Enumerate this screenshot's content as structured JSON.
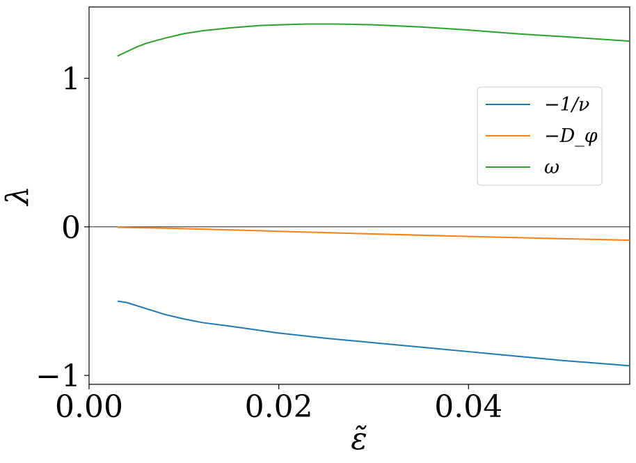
{
  "chart_data": {
    "type": "line",
    "xlabel": "ε̃",
    "ylabel": "λ",
    "xlim": [
      0.0,
      0.057
    ],
    "ylim": [
      -1.06,
      1.48
    ],
    "xticks": [
      0.0,
      0.02,
      0.04
    ],
    "xtick_labels": [
      "0.00",
      "0.02",
      "0.04"
    ],
    "yticks": [
      -1,
      0,
      1
    ],
    "ytick_labels": [
      "−1",
      "0",
      "1"
    ],
    "grid": false,
    "zero_line": 0,
    "legend_position": "center-right",
    "series": [
      {
        "name": "−1/ν",
        "color": "#1f77b4",
        "x": [
          0.003,
          0.004,
          0.005,
          0.006,
          0.008,
          0.01,
          0.012,
          0.015,
          0.02,
          0.025,
          0.03,
          0.035,
          0.04,
          0.045,
          0.05,
          0.057
        ],
        "y": [
          -0.5,
          -0.51,
          -0.53,
          -0.55,
          -0.59,
          -0.62,
          -0.645,
          -0.67,
          -0.715,
          -0.75,
          -0.78,
          -0.81,
          -0.84,
          -0.87,
          -0.9,
          -0.935
        ]
      },
      {
        "name": "−D_φ",
        "color": "#ff7f0e",
        "x": [
          0.003,
          0.01,
          0.02,
          0.03,
          0.04,
          0.05,
          0.057
        ],
        "y": [
          -0.003,
          -0.012,
          -0.03,
          -0.048,
          -0.065,
          -0.08,
          -0.09
        ]
      },
      {
        "name": "ω",
        "color": "#2ca02c",
        "x": [
          0.003,
          0.004,
          0.005,
          0.006,
          0.008,
          0.01,
          0.012,
          0.015,
          0.018,
          0.02,
          0.023,
          0.026,
          0.03,
          0.035,
          0.04,
          0.045,
          0.05,
          0.057
        ],
        "y": [
          1.15,
          1.18,
          1.21,
          1.235,
          1.27,
          1.3,
          1.32,
          1.34,
          1.355,
          1.36,
          1.365,
          1.365,
          1.36,
          1.345,
          1.325,
          1.3,
          1.28,
          1.25
        ]
      }
    ]
  }
}
